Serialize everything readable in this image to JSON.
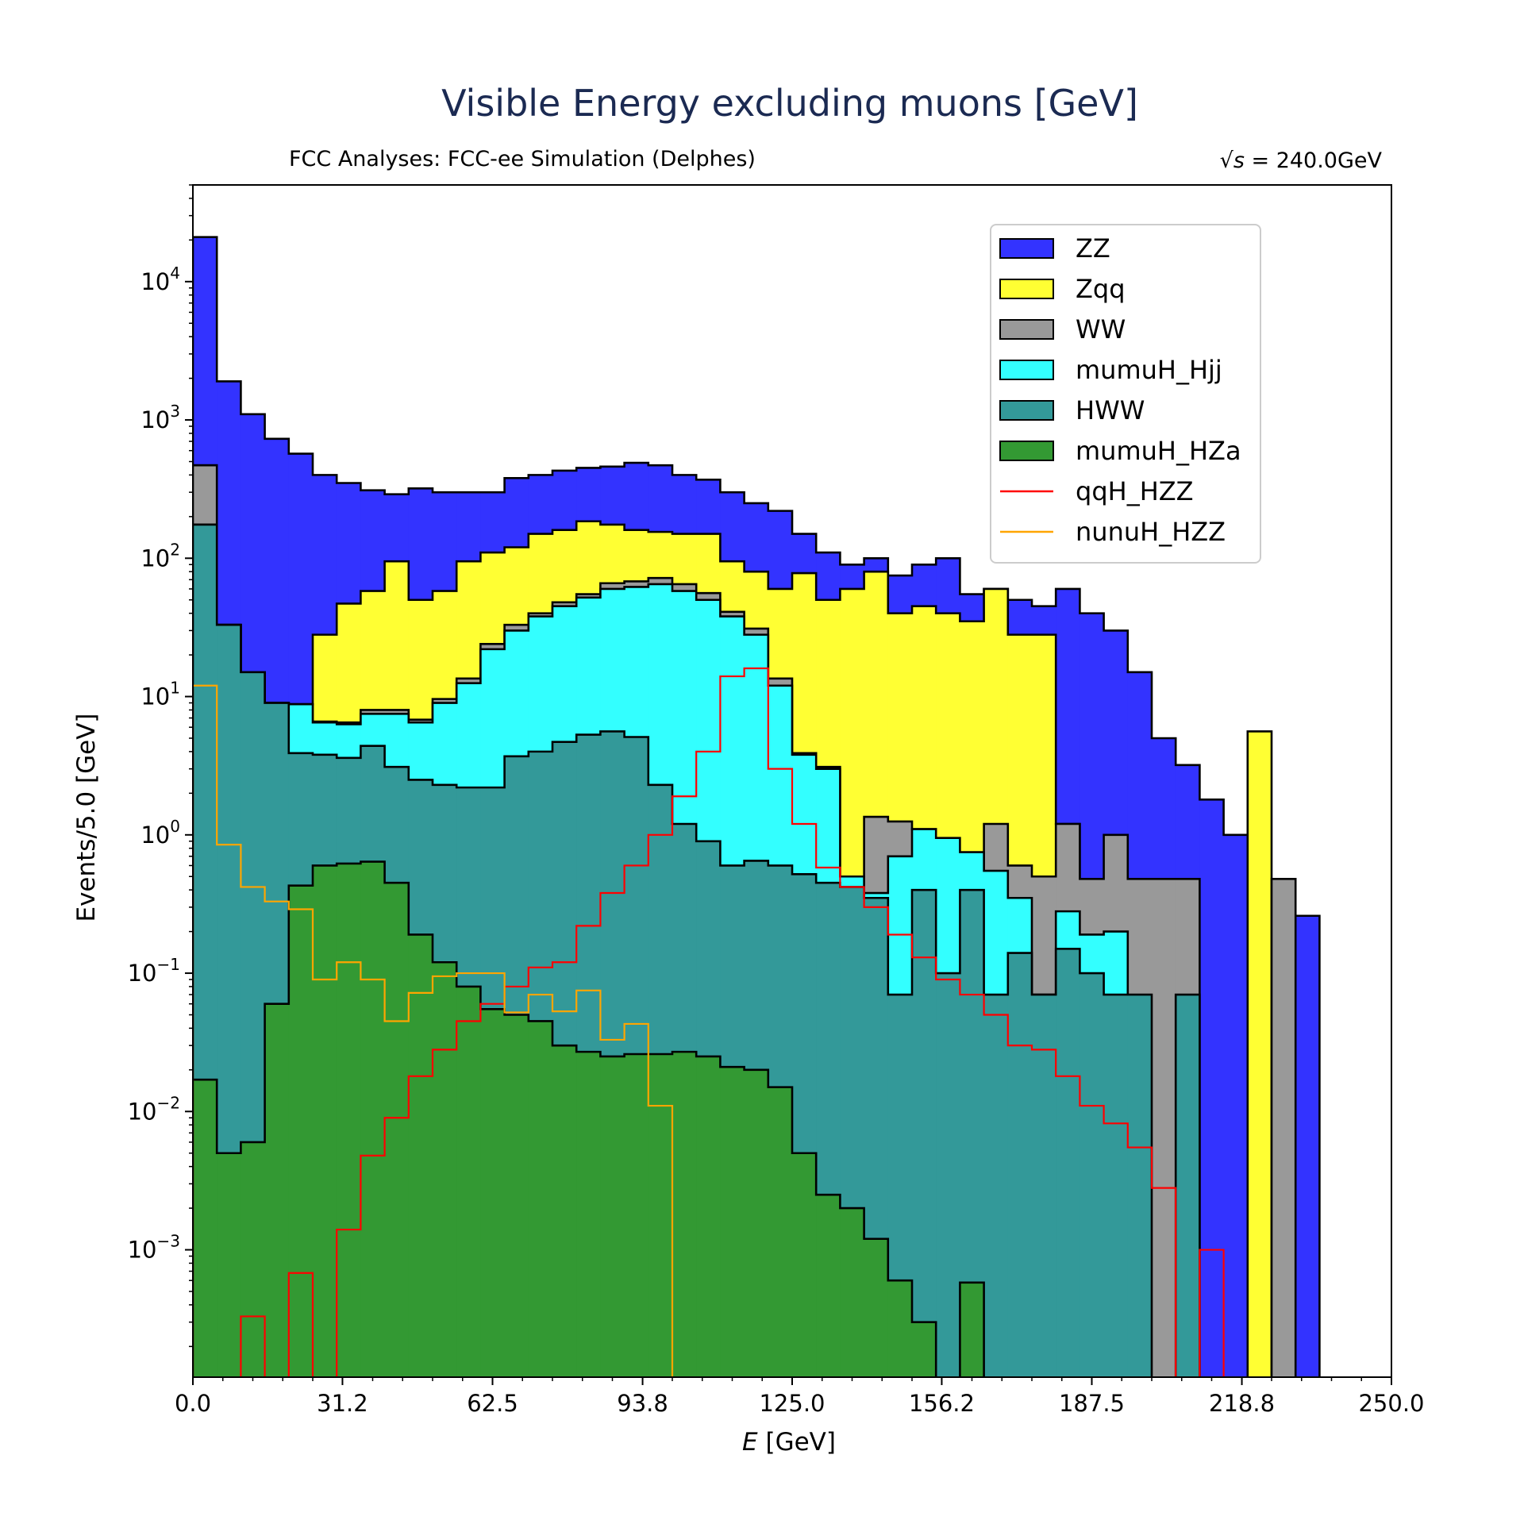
{
  "chart_data": {
    "type": "bar",
    "title": "Visible Energy excluding muons [GeV]",
    "subtitle_left": "FCC Analyses: FCC-ee Simulation (Delphes)",
    "subtitle_right_prefix": "√s",
    "subtitle_right_value": " = 240.0GeV",
    "xlabel_italic": "E",
    "xlabel_rest": " [GeV]",
    "ylabel": "Events/5.0 [GeV]",
    "xlim": [
      0,
      250
    ],
    "ylim": [
      0.00012,
      50000
    ],
    "yscale": "log",
    "bin_width": 5,
    "x_ticks": [
      "0.0",
      "31.2",
      "62.5",
      "93.8",
      "125.0",
      "156.2",
      "187.5",
      "218.8",
      "250.0"
    ],
    "y_ticks": [
      {
        "base": "10",
        "exp": "4"
      },
      {
        "base": "10",
        "exp": "3"
      },
      {
        "base": "10",
        "exp": "2"
      },
      {
        "base": "10",
        "exp": "1"
      },
      {
        "base": "10",
        "exp": "0"
      },
      {
        "base": "10",
        "exp": "−1"
      },
      {
        "base": "10",
        "exp": "−2"
      },
      {
        "base": "10",
        "exp": "−3"
      }
    ],
    "legend_position": "upper right",
    "stacked_series": [
      {
        "name": "ZZ",
        "color": "#3333ff",
        "cumulative": [
          21000,
          1900,
          1100,
          730,
          570,
          400,
          350,
          310,
          290,
          320,
          300,
          300,
          300,
          380,
          400,
          430,
          450,
          460,
          490,
          470,
          400,
          370,
          300,
          250,
          220,
          150,
          110,
          90,
          100,
          75,
          90,
          100,
          55,
          60,
          50,
          45,
          60,
          40,
          30,
          15,
          5,
          3.2,
          1.8,
          1.0,
          0,
          0,
          0.26,
          0,
          0,
          0
        ]
      },
      {
        "name": "Zqq",
        "color": "#ffff33",
        "cumulative": [
          470,
          33,
          15,
          9,
          8.8,
          28,
          47,
          58,
          95,
          50,
          58,
          95,
          110,
          120,
          150,
          160,
          185,
          175,
          160,
          155,
          150,
          150,
          95,
          80,
          60,
          78,
          50,
          60,
          80,
          40,
          45,
          40,
          35,
          60,
          28,
          28,
          1.2,
          0,
          0,
          0,
          0,
          0,
          0,
          0,
          5.6,
          0,
          0,
          0,
          0,
          0
        ]
      },
      {
        "name": "WW",
        "color": "#999999",
        "cumulative": [
          470,
          33,
          15,
          9,
          8.8,
          6.6,
          6.5,
          8.0,
          8.0,
          6.8,
          9.6,
          13.5,
          24,
          33,
          40,
          48,
          55,
          66,
          68,
          72,
          65,
          56,
          41,
          31,
          13.5,
          3.9,
          3.1,
          0.5,
          1.35,
          1.25,
          1.1,
          0.55,
          0.2,
          1.2,
          0.6,
          0.5,
          1.2,
          0.48,
          1.0,
          0.48,
          0.48,
          0.48,
          0,
          0,
          0,
          0.48,
          0,
          0,
          0,
          0
        ]
      },
      {
        "name": "mumuH_Hjj",
        "color": "#33ffff",
        "cumulative": [
          175,
          33,
          15,
          9,
          8.8,
          6.5,
          6.3,
          7.5,
          7.5,
          6.5,
          9.0,
          12.5,
          22,
          30,
          38,
          45,
          52,
          60,
          62,
          65,
          58,
          50,
          38,
          28,
          12,
          3.8,
          3.0,
          0.5,
          0.38,
          0.7,
          1.1,
          0.95,
          0.75,
          0.55,
          0.35,
          0.07,
          0.28,
          0.19,
          0.2,
          0,
          0,
          0,
          0,
          0,
          0,
          0,
          0,
          0,
          0,
          0
        ]
      },
      {
        "name": "HWW",
        "color": "#339999",
        "cumulative": [
          175,
          33,
          15,
          9,
          3.9,
          3.8,
          3.6,
          4.4,
          3.1,
          2.5,
          2.3,
          2.2,
          2.2,
          3.7,
          4.0,
          4.7,
          5.3,
          5.6,
          5.1,
          2.3,
          1.2,
          0.9,
          0.6,
          0.65,
          0.6,
          0.52,
          0.45,
          0.42,
          0.35,
          0.07,
          0.4,
          0.1,
          0.4,
          0.07,
          0.14,
          0.07,
          0.15,
          0.1,
          0.07,
          0.07,
          0,
          0.07,
          0,
          0,
          0,
          0,
          0,
          0,
          0,
          0
        ]
      },
      {
        "name": "mumuH_HZa",
        "color": "#339933",
        "cumulative": [
          0.017,
          0.005,
          0.006,
          0.06,
          0.43,
          0.6,
          0.62,
          0.64,
          0.45,
          0.19,
          0.12,
          0.08,
          0.055,
          0.05,
          0.045,
          0.03,
          0.027,
          0.025,
          0.026,
          0.026,
          0.027,
          0.025,
          0.021,
          0.02,
          0.015,
          0.005,
          0.0025,
          0.002,
          0.0012,
          0.0006,
          0.0003,
          0,
          0.00058,
          0,
          0,
          0,
          0,
          0,
          0,
          0,
          0,
          0,
          0,
          0,
          0,
          0,
          0,
          0,
          0,
          0
        ]
      }
    ],
    "overlay_series": [
      {
        "name": "qqH_HZZ",
        "color": "#ff0000",
        "values": [
          0,
          0,
          0.00033,
          0,
          0.00068,
          0,
          0.0014,
          0.0048,
          0.009,
          0.018,
          0.028,
          0.045,
          0.06,
          0.08,
          0.11,
          0.12,
          0.22,
          0.38,
          0.6,
          1.0,
          1.9,
          4.0,
          14,
          16,
          3.0,
          1.2,
          0.58,
          0.42,
          0.3,
          0.19,
          0.13,
          0.09,
          0.07,
          0.05,
          0.03,
          0.028,
          0.018,
          0.011,
          0.0082,
          0.0055,
          0.0028,
          0,
          0.001,
          0,
          0,
          0,
          0,
          0,
          0,
          0
        ]
      },
      {
        "name": "nunuH_HZZ",
        "color": "#ffa500",
        "values": [
          12,
          0.85,
          0.42,
          0.33,
          0.29,
          0.09,
          0.12,
          0.09,
          0.045,
          0.072,
          0.095,
          0.1,
          0.1,
          0.052,
          0.07,
          0.053,
          0.075,
          0.033,
          0.043,
          0.011,
          0,
          0,
          0,
          0,
          0,
          0,
          0,
          0,
          0,
          0,
          0,
          0,
          0,
          0,
          0,
          0,
          0,
          0,
          0,
          0,
          0,
          0,
          0,
          0,
          0,
          0,
          0,
          0,
          0,
          0
        ]
      }
    ]
  }
}
